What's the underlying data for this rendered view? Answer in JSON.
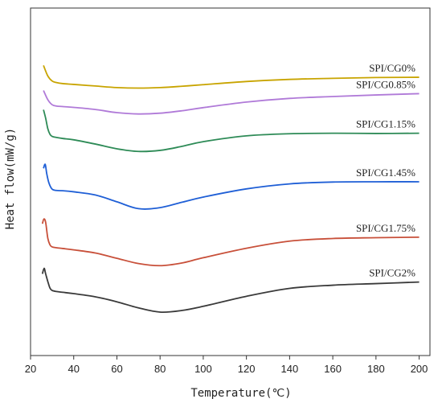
{
  "chart_data": {
    "type": "line",
    "title": "",
    "xlabel": "Temperature(℃)",
    "ylabel": "Heat flow(mW/g)",
    "xlim": [
      20,
      205
    ],
    "xticks": [
      "20",
      "40",
      "60",
      "80",
      "100",
      "120",
      "140",
      "160",
      "180",
      "200"
    ],
    "yticks_shown": false,
    "grid": false,
    "legend": "labels next to curves on the right",
    "ylim": [
      0,
      100
    ],
    "series": [
      {
        "name": "SPI/CG0%",
        "color": "#c8a400",
        "x": [
          26,
          28,
          30,
          32,
          35,
          40,
          50,
          60,
          70,
          80,
          90,
          100,
          120,
          140,
          160,
          180,
          200
        ],
        "y": [
          93.5,
          89.5,
          87.6,
          87.0,
          86.6,
          86.3,
          85.7,
          85.1,
          84.9,
          85.1,
          85.6,
          86.2,
          87.4,
          88.2,
          88.6,
          88.9,
          89.0
        ]
      },
      {
        "name": "SPI/CG0.85%",
        "color": "#b07ad8",
        "x": [
          26,
          28,
          30,
          32,
          35,
          40,
          50,
          60,
          70,
          80,
          90,
          100,
          120,
          140,
          160,
          180,
          200
        ],
        "y": [
          84.0,
          80.5,
          78.6,
          78.1,
          77.9,
          77.6,
          76.8,
          75.6,
          75.1,
          75.4,
          76.3,
          77.5,
          79.6,
          81.0,
          81.7,
          82.3,
          82.8
        ]
      },
      {
        "name": "SPI/CG1.15%",
        "color": "#2e8b57",
        "x": [
          26,
          27,
          28,
          29,
          30,
          32,
          35,
          40,
          50,
          60,
          70,
          80,
          90,
          100,
          120,
          140,
          160,
          180,
          200
        ],
        "y": [
          76.7,
          73.5,
          69.5,
          67.4,
          66.6,
          66.2,
          65.8,
          65.3,
          63.7,
          61.9,
          60.9,
          61.3,
          62.8,
          64.6,
          66.8,
          67.6,
          67.8,
          67.7,
          67.8
        ]
      },
      {
        "name": "SPI/CG1.45%",
        "color": "#1f5fd6",
        "x": [
          26,
          26.8,
          27.5,
          28.5,
          30,
          32,
          35,
          40,
          50,
          60,
          70,
          80,
          90,
          100,
          120,
          140,
          160,
          180,
          200
        ],
        "y": [
          54.5,
          56.0,
          52.5,
          49.0,
          46.6,
          46.1,
          46.0,
          45.6,
          44.4,
          41.8,
          39.2,
          39.6,
          41.6,
          43.6,
          46.7,
          48.6,
          49.3,
          49.4,
          49.4
        ]
      },
      {
        "name": "SPI/CG1.75%",
        "color": "#c8503a",
        "x": [
          25.5,
          26.2,
          27,
          28,
          29,
          30,
          32,
          35,
          40,
          50,
          60,
          70,
          80,
          90,
          100,
          120,
          140,
          160,
          180,
          200
        ],
        "y": [
          33.5,
          35.3,
          34.0,
          28.0,
          25.5,
          24.7,
          24.4,
          24.1,
          23.6,
          22.4,
          20.4,
          18.4,
          17.6,
          18.6,
          20.6,
          24.2,
          26.9,
          27.9,
          28.2,
          28.4
        ]
      },
      {
        "name": "SPI/CG2%",
        "color": "#3a3a3a",
        "x": [
          25.5,
          26.3,
          27,
          28,
          29,
          30,
          32,
          35,
          40,
          50,
          60,
          70,
          80,
          90,
          100,
          120,
          140,
          160,
          180,
          200
        ],
        "y": [
          14.5,
          16.6,
          14.5,
          11.6,
          9.1,
          8.2,
          7.8,
          7.5,
          7.0,
          5.8,
          3.9,
          1.6,
          0.0,
          0.6,
          2.2,
          6.0,
          9.0,
          10.2,
          10.8,
          11.4
        ]
      }
    ]
  }
}
